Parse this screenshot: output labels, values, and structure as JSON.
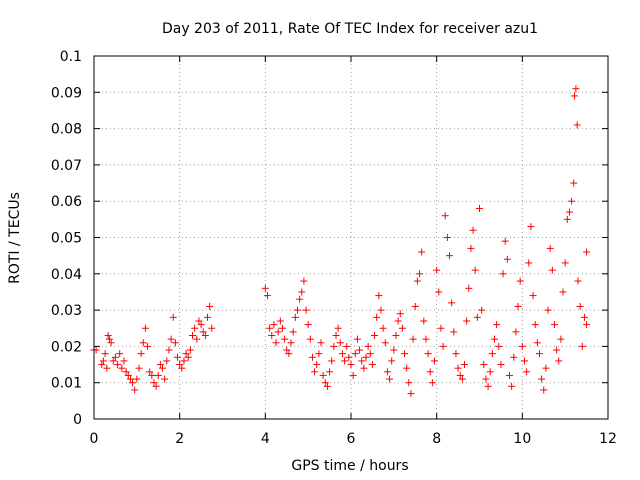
{
  "chart_data": {
    "type": "scatter",
    "title": "Day 203 of 2011, Rate Of TEC Index for receiver azu1",
    "xlabel": "GPS time / hours",
    "ylabel": "ROTI / TECUs",
    "xlim": [
      0,
      12
    ],
    "ylim": [
      0,
      0.1
    ],
    "xticks": [
      0,
      2,
      4,
      6,
      8,
      10,
      12
    ],
    "yticks": [
      0,
      0.01,
      0.02,
      0.03,
      0.04,
      0.05,
      0.06,
      0.07,
      0.08,
      0.09,
      0.1
    ],
    "xtick_labels": [
      "0",
      "2",
      "4",
      "6",
      "8",
      "10",
      "12"
    ],
    "ytick_labels": [
      "0",
      "0.01",
      "0.02",
      "0.03",
      "0.04",
      "0.05",
      "0.06",
      "0.07",
      "0.08",
      "0.09",
      "0.1"
    ],
    "grid": true,
    "marker": "+",
    "marker_color": "#ff0000",
    "series": [
      {
        "name": "azu1",
        "points": [
          [
            0.0,
            0.019
          ],
          [
            0.05,
            0.019
          ],
          [
            0.18,
            0.015
          ],
          [
            0.22,
            0.016
          ],
          [
            0.26,
            0.018
          ],
          [
            0.3,
            0.014
          ],
          [
            0.33,
            0.023
          ],
          [
            0.36,
            0.022
          ],
          [
            0.4,
            0.021
          ],
          [
            0.45,
            0.016
          ],
          [
            0.5,
            0.017
          ],
          [
            0.55,
            0.015
          ],
          [
            0.6,
            0.018
          ],
          [
            0.65,
            0.014
          ],
          [
            0.7,
            0.016
          ],
          [
            0.75,
            0.013
          ],
          [
            0.8,
            0.012
          ],
          [
            0.85,
            0.011
          ],
          [
            0.9,
            0.01
          ],
          [
            0.95,
            0.008
          ],
          [
            1.0,
            0.011
          ],
          [
            1.05,
            0.014
          ],
          [
            1.1,
            0.018
          ],
          [
            1.15,
            0.021
          ],
          [
            1.2,
            0.025
          ],
          [
            1.25,
            0.02
          ],
          [
            1.3,
            0.013
          ],
          [
            1.35,
            0.012
          ],
          [
            1.4,
            0.01
          ],
          [
            1.45,
            0.009
          ],
          [
            1.5,
            0.012
          ],
          [
            1.55,
            0.015
          ],
          [
            1.6,
            0.014
          ],
          [
            1.65,
            0.011
          ],
          [
            1.7,
            0.016
          ],
          [
            1.75,
            0.019
          ],
          [
            1.8,
            0.022
          ],
          [
            1.85,
            0.028
          ],
          [
            1.9,
            0.021
          ],
          [
            1.95,
            0.017
          ],
          [
            2.0,
            0.015
          ],
          [
            2.05,
            0.014
          ],
          [
            2.1,
            0.016
          ],
          [
            2.15,
            0.018
          ],
          [
            2.2,
            0.017
          ],
          [
            2.25,
            0.019
          ],
          [
            2.3,
            0.023
          ],
          [
            2.35,
            0.025
          ],
          [
            2.4,
            0.022
          ],
          [
            2.45,
            0.027
          ],
          [
            2.5,
            0.026
          ],
          [
            2.55,
            0.024
          ],
          [
            2.6,
            0.023
          ],
          [
            2.65,
            0.028
          ],
          [
            2.7,
            0.031
          ],
          [
            2.75,
            0.025
          ],
          [
            4.0,
            0.036
          ],
          [
            4.05,
            0.034
          ],
          [
            4.1,
            0.025
          ],
          [
            4.15,
            0.023
          ],
          [
            4.2,
            0.026
          ],
          [
            4.25,
            0.021
          ],
          [
            4.3,
            0.024
          ],
          [
            4.35,
            0.027
          ],
          [
            4.4,
            0.025
          ],
          [
            4.45,
            0.022
          ],
          [
            4.5,
            0.019
          ],
          [
            4.55,
            0.018
          ],
          [
            4.6,
            0.021
          ],
          [
            4.65,
            0.024
          ],
          [
            4.7,
            0.028
          ],
          [
            4.75,
            0.03
          ],
          [
            4.8,
            0.033
          ],
          [
            4.85,
            0.035
          ],
          [
            4.9,
            0.038
          ],
          [
            4.95,
            0.03
          ],
          [
            5.0,
            0.026
          ],
          [
            5.05,
            0.022
          ],
          [
            5.1,
            0.017
          ],
          [
            5.15,
            0.013
          ],
          [
            5.2,
            0.015
          ],
          [
            5.25,
            0.018
          ],
          [
            5.3,
            0.021
          ],
          [
            5.35,
            0.012
          ],
          [
            5.4,
            0.01
          ],
          [
            5.45,
            0.009
          ],
          [
            5.5,
            0.013
          ],
          [
            5.55,
            0.016
          ],
          [
            5.6,
            0.02
          ],
          [
            5.65,
            0.023
          ],
          [
            5.7,
            0.025
          ],
          [
            5.75,
            0.021
          ],
          [
            5.8,
            0.018
          ],
          [
            5.85,
            0.016
          ],
          [
            5.9,
            0.02
          ],
          [
            5.95,
            0.017
          ],
          [
            6.0,
            0.015
          ],
          [
            6.05,
            0.012
          ],
          [
            6.1,
            0.018
          ],
          [
            6.15,
            0.022
          ],
          [
            6.2,
            0.019
          ],
          [
            6.25,
            0.016
          ],
          [
            6.3,
            0.014
          ],
          [
            6.35,
            0.017
          ],
          [
            6.4,
            0.02
          ],
          [
            6.45,
            0.018
          ],
          [
            6.5,
            0.015
          ],
          [
            6.55,
            0.023
          ],
          [
            6.6,
            0.028
          ],
          [
            6.65,
            0.034
          ],
          [
            6.7,
            0.03
          ],
          [
            6.75,
            0.025
          ],
          [
            6.8,
            0.021
          ],
          [
            6.85,
            0.013
          ],
          [
            6.9,
            0.011
          ],
          [
            6.95,
            0.016
          ],
          [
            7.0,
            0.019
          ],
          [
            7.05,
            0.023
          ],
          [
            7.1,
            0.027
          ],
          [
            7.15,
            0.029
          ],
          [
            7.2,
            0.025
          ],
          [
            7.25,
            0.018
          ],
          [
            7.3,
            0.014
          ],
          [
            7.35,
            0.01
          ],
          [
            7.4,
            0.007
          ],
          [
            7.45,
            0.022
          ],
          [
            7.5,
            0.031
          ],
          [
            7.55,
            0.038
          ],
          [
            7.6,
            0.04
          ],
          [
            7.65,
            0.046
          ],
          [
            7.7,
            0.027
          ],
          [
            7.75,
            0.022
          ],
          [
            7.8,
            0.018
          ],
          [
            7.85,
            0.013
          ],
          [
            7.9,
            0.01
          ],
          [
            7.95,
            0.016
          ],
          [
            8.0,
            0.041
          ],
          [
            8.05,
            0.035
          ],
          [
            8.1,
            0.025
          ],
          [
            8.15,
            0.02
          ],
          [
            8.2,
            0.056
          ],
          [
            8.25,
            0.05
          ],
          [
            8.3,
            0.045
          ],
          [
            8.35,
            0.032
          ],
          [
            8.4,
            0.024
          ],
          [
            8.45,
            0.018
          ],
          [
            8.5,
            0.014
          ],
          [
            8.55,
            0.012
          ],
          [
            8.6,
            0.011
          ],
          [
            8.65,
            0.015
          ],
          [
            8.7,
            0.027
          ],
          [
            8.75,
            0.036
          ],
          [
            8.8,
            0.047
          ],
          [
            8.85,
            0.052
          ],
          [
            8.9,
            0.041
          ],
          [
            8.95,
            0.028
          ],
          [
            9.0,
            0.058
          ],
          [
            9.05,
            0.03
          ],
          [
            9.1,
            0.015
          ],
          [
            9.15,
            0.011
          ],
          [
            9.2,
            0.009
          ],
          [
            9.25,
            0.013
          ],
          [
            9.3,
            0.018
          ],
          [
            9.35,
            0.022
          ],
          [
            9.4,
            0.026
          ],
          [
            9.45,
            0.02
          ],
          [
            9.5,
            0.015
          ],
          [
            9.55,
            0.04
          ],
          [
            9.6,
            0.049
          ],
          [
            9.65,
            0.044
          ],
          [
            9.7,
            0.012
          ],
          [
            9.75,
            0.009
          ],
          [
            9.8,
            0.017
          ],
          [
            9.85,
            0.024
          ],
          [
            9.9,
            0.031
          ],
          [
            9.95,
            0.038
          ],
          [
            10.0,
            0.02
          ],
          [
            10.05,
            0.016
          ],
          [
            10.1,
            0.013
          ],
          [
            10.15,
            0.043
          ],
          [
            10.2,
            0.053
          ],
          [
            10.25,
            0.034
          ],
          [
            10.3,
            0.026
          ],
          [
            10.35,
            0.021
          ],
          [
            10.4,
            0.018
          ],
          [
            10.45,
            0.011
          ],
          [
            10.5,
            0.008
          ],
          [
            10.55,
            0.014
          ],
          [
            10.6,
            0.03
          ],
          [
            10.65,
            0.047
          ],
          [
            10.7,
            0.041
          ],
          [
            10.75,
            0.026
          ],
          [
            10.8,
            0.019
          ],
          [
            10.85,
            0.016
          ],
          [
            10.9,
            0.022
          ],
          [
            10.95,
            0.035
          ],
          [
            11.0,
            0.043
          ],
          [
            11.05,
            0.055
          ],
          [
            11.1,
            0.057
          ],
          [
            11.15,
            0.06
          ],
          [
            11.2,
            0.065
          ],
          [
            11.22,
            0.089
          ],
          [
            11.25,
            0.091
          ],
          [
            11.28,
            0.081
          ],
          [
            11.3,
            0.038
          ],
          [
            11.35,
            0.031
          ],
          [
            11.4,
            0.02
          ],
          [
            11.45,
            0.028
          ],
          [
            11.5,
            0.046
          ],
          [
            11.5,
            0.026
          ]
        ]
      }
    ]
  }
}
